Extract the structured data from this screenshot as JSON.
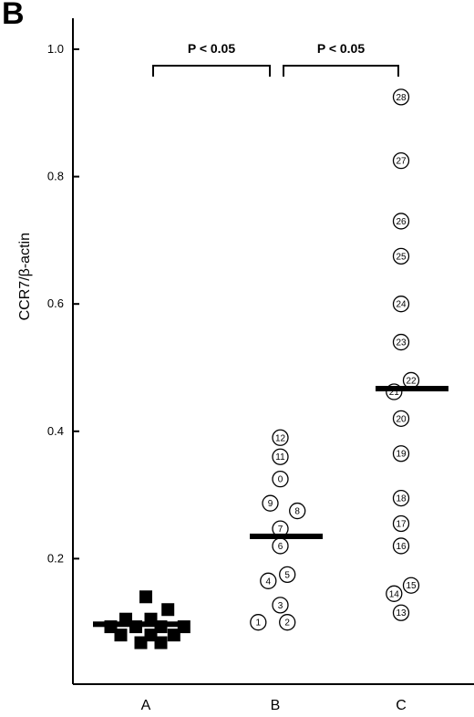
{
  "panel_label": "B",
  "chart_data": {
    "type": "scatter",
    "title": "",
    "xlabel": "",
    "ylabel": "CCR7/β-actin",
    "ylim": [
      0.0,
      1.05
    ],
    "yticks": [
      0.2,
      0.4,
      0.6,
      0.8,
      1.0
    ],
    "ytick_labels": [
      "0.2",
      "0.4",
      "0.6",
      "0.8",
      "1.0"
    ],
    "categories": [
      "A",
      "B",
      "C"
    ],
    "grid": false,
    "series": [
      {
        "category": "A",
        "marker": "filled-square",
        "median": 0.097,
        "points": [
          {
            "dx": 0.0,
            "y": 0.14
          },
          {
            "dx": 0.22,
            "y": 0.12
          },
          {
            "dx": -0.2,
            "y": 0.105
          },
          {
            "dx": 0.05,
            "y": 0.105
          },
          {
            "dx": -0.35,
            "y": 0.093
          },
          {
            "dx": -0.1,
            "y": 0.093
          },
          {
            "dx": 0.15,
            "y": 0.093
          },
          {
            "dx": 0.38,
            "y": 0.093
          },
          {
            "dx": -0.25,
            "y": 0.08
          },
          {
            "dx": 0.05,
            "y": 0.08
          },
          {
            "dx": 0.28,
            "y": 0.08
          },
          {
            "dx": -0.05,
            "y": 0.068
          },
          {
            "dx": 0.15,
            "y": 0.068
          }
        ]
      },
      {
        "category": "B",
        "marker": "numbered-circle",
        "median": 0.235,
        "points": [
          {
            "label": "1",
            "dx": -0.17,
            "y": 0.1
          },
          {
            "label": "2",
            "dx": 0.12,
            "y": 0.1
          },
          {
            "label": "3",
            "dx": 0.05,
            "y": 0.127
          },
          {
            "label": "4",
            "dx": -0.07,
            "y": 0.165
          },
          {
            "label": "5",
            "dx": 0.12,
            "y": 0.175
          },
          {
            "label": "6",
            "dx": 0.05,
            "y": 0.22
          },
          {
            "label": "7",
            "dx": 0.05,
            "y": 0.247
          },
          {
            "label": "8",
            "dx": 0.22,
            "y": 0.275
          },
          {
            "label": "9",
            "dx": -0.05,
            "y": 0.287
          },
          {
            "label": "0",
            "dx": 0.05,
            "y": 0.325
          },
          {
            "label": "11",
            "dx": 0.05,
            "y": 0.36
          },
          {
            "label": "12",
            "dx": 0.05,
            "y": 0.39
          }
        ]
      },
      {
        "category": "C",
        "marker": "numbered-circle",
        "median": 0.467,
        "points": [
          {
            "label": "13",
            "dx": 0.0,
            "y": 0.115
          },
          {
            "label": "14",
            "dx": -0.07,
            "y": 0.145
          },
          {
            "label": "15",
            "dx": 0.1,
            "y": 0.158
          },
          {
            "label": "16",
            "dx": 0.0,
            "y": 0.22
          },
          {
            "label": "17",
            "dx": 0.0,
            "y": 0.255
          },
          {
            "label": "18",
            "dx": 0.0,
            "y": 0.295
          },
          {
            "label": "19",
            "dx": 0.0,
            "y": 0.365
          },
          {
            "label": "20",
            "dx": 0.0,
            "y": 0.42
          },
          {
            "label": "21",
            "dx": -0.07,
            "y": 0.462
          },
          {
            "label": "22",
            "dx": 0.1,
            "y": 0.48
          },
          {
            "label": "23",
            "dx": 0.0,
            "y": 0.54
          },
          {
            "label": "24",
            "dx": 0.0,
            "y": 0.6
          },
          {
            "label": "25",
            "dx": 0.0,
            "y": 0.675
          },
          {
            "label": "26",
            "dx": 0.0,
            "y": 0.73
          },
          {
            "label": "27",
            "dx": 0.0,
            "y": 0.825
          },
          {
            "label": "28",
            "dx": 0.0,
            "y": 0.925
          }
        ]
      }
    ],
    "annotations": [
      {
        "from": "A",
        "to": "B",
        "text": "P < 0.05",
        "y": 0.97
      },
      {
        "from": "B",
        "to": "C",
        "text": "P < 0.05",
        "y": 0.97
      }
    ]
  }
}
